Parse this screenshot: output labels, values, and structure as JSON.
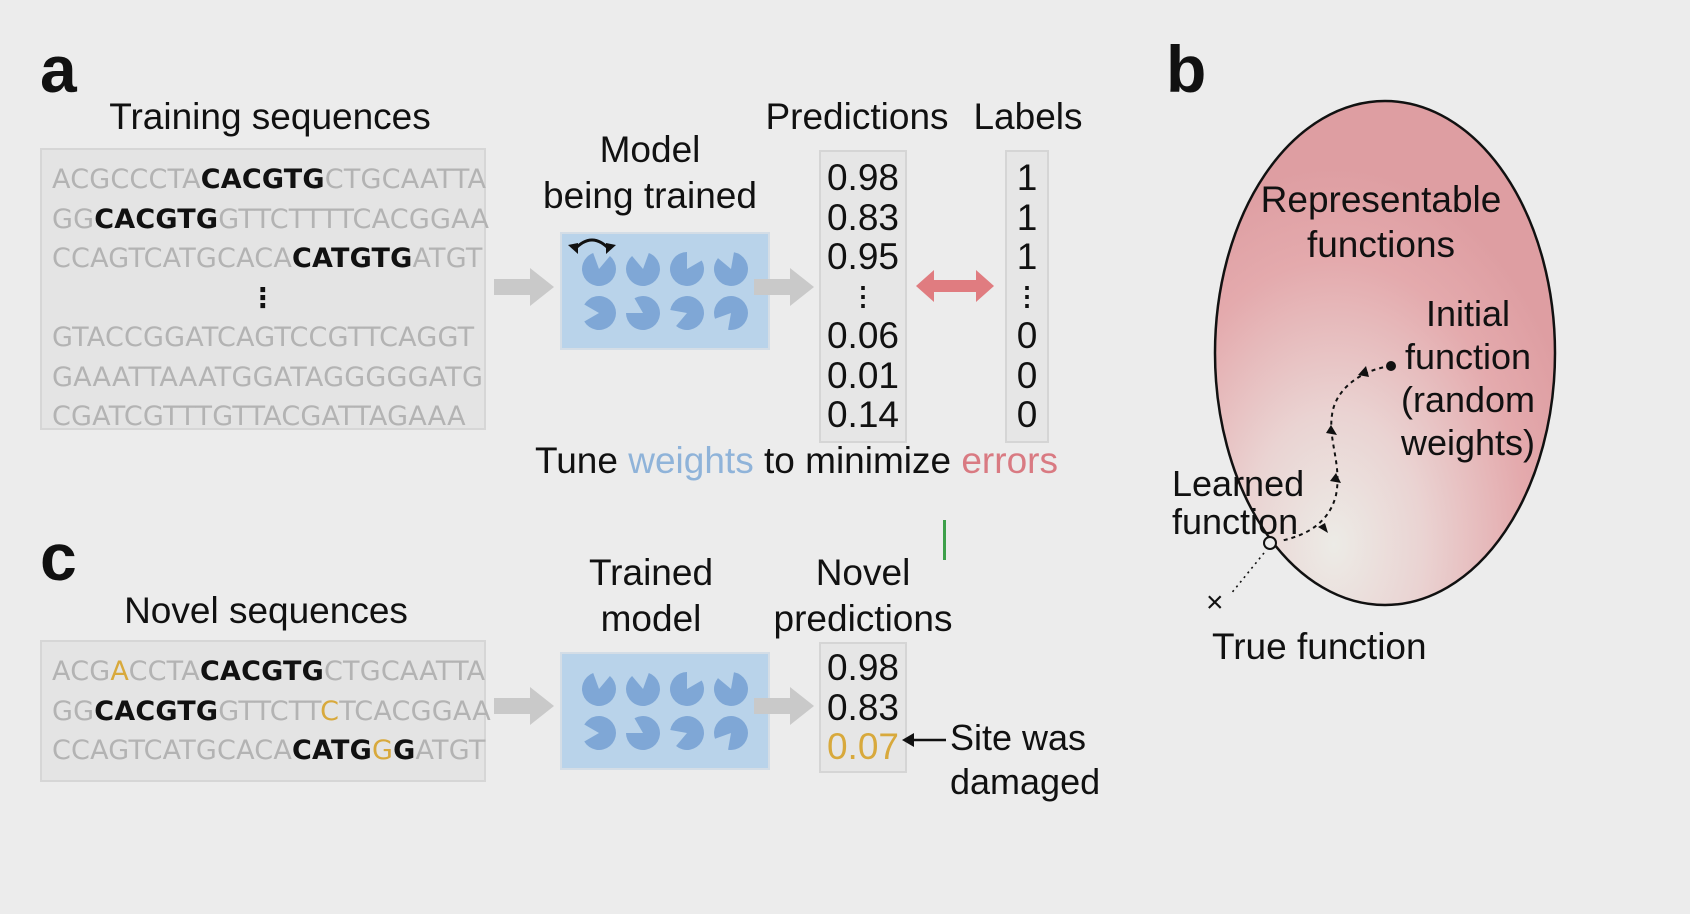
{
  "panel_a": {
    "letter": "a",
    "training_title": "Training sequences",
    "training_sequences": [
      [
        {
          "t": "ACGCCCTA",
          "m": false
        },
        {
          "t": "CACGTG",
          "m": true
        },
        {
          "t": "CTGCAATTA",
          "m": false
        }
      ],
      [
        {
          "t": "GG",
          "m": false
        },
        {
          "t": "CACGTG",
          "m": true
        },
        {
          "t": "GTTCTTTTCACGGAA",
          "m": false
        }
      ],
      [
        {
          "t": "CCAGTCATGCACA",
          "m": false
        },
        {
          "t": "CATGTG",
          "m": true
        },
        {
          "t": "ATGT",
          "m": false
        }
      ],
      "⋮",
      [
        {
          "t": "GTACCGGATCAGTCCGTTCAGGT",
          "m": false
        }
      ],
      [
        {
          "t": "GAAATTAAATGGATAGGGGGATG",
          "m": false
        }
      ],
      [
        {
          "t": "CGATCGTTTGTTACGATTAGAAA",
          "m": false
        }
      ]
    ],
    "model_title_line1": "Model",
    "model_title_line2": "being trained",
    "predictions_title": "Predictions",
    "labels_title": "Labels",
    "predictions": [
      "0.98",
      "0.83",
      "0.95",
      "⋮",
      "0.06",
      "0.01",
      "0.14"
    ],
    "labels": [
      "1",
      "1",
      "1",
      "⋮",
      "0",
      "0",
      "0"
    ],
    "caption_part1": "Tune ",
    "caption_weights": "weights",
    "caption_part2": " to minimize ",
    "caption_errors": "errors"
  },
  "panel_b": {
    "letter": "b",
    "region_line1": "Representable",
    "region_line2": "functions",
    "initial_lines": [
      "Initial",
      "function",
      "(random",
      "weights)"
    ],
    "learned_line1": "Learned",
    "learned_line2": "function",
    "true_marker": "×",
    "true_label": "True function"
  },
  "panel_c": {
    "letter": "c",
    "novel_title": "Novel sequences",
    "novel_sequences": [
      [
        {
          "t": "ACG",
          "c": "g"
        },
        {
          "t": "A",
          "c": "y"
        },
        {
          "t": "CCTA",
          "c": "g"
        },
        {
          "t": "CACGTG",
          "c": "m"
        },
        {
          "t": "CTGCAATTA",
          "c": "g"
        }
      ],
      [
        {
          "t": "GG",
          "c": "g"
        },
        {
          "t": "CACGTG",
          "c": "m"
        },
        {
          "t": "GTTCTT",
          "c": "g"
        },
        {
          "t": "C",
          "c": "y"
        },
        {
          "t": "TCACGGAA",
          "c": "g"
        }
      ],
      [
        {
          "t": "CCAGTCATGCACA",
          "c": "g"
        },
        {
          "t": "CATG",
          "c": "m"
        },
        {
          "t": "G",
          "c": "y"
        },
        {
          "t": "G",
          "c": "m"
        },
        {
          "t": "ATGT",
          "c": "g"
        }
      ]
    ],
    "trained_line1": "Trained",
    "trained_line2": "model",
    "novel_pred_line1": "Novel",
    "novel_pred_line2": "predictions",
    "novel_predictions": [
      "0.98",
      "0.83",
      "0.07"
    ],
    "damaged_line1": "Site was",
    "damaged_line2": "damaged"
  },
  "colors": {
    "model_fill": "#b9d3ea",
    "dial": "#7fa7d6",
    "error_arrow": "#e07c80",
    "ellipse_fill": "#e6a7ab",
    "highlight": "#d8a93c",
    "arrow_gray": "#c9c9c9"
  }
}
